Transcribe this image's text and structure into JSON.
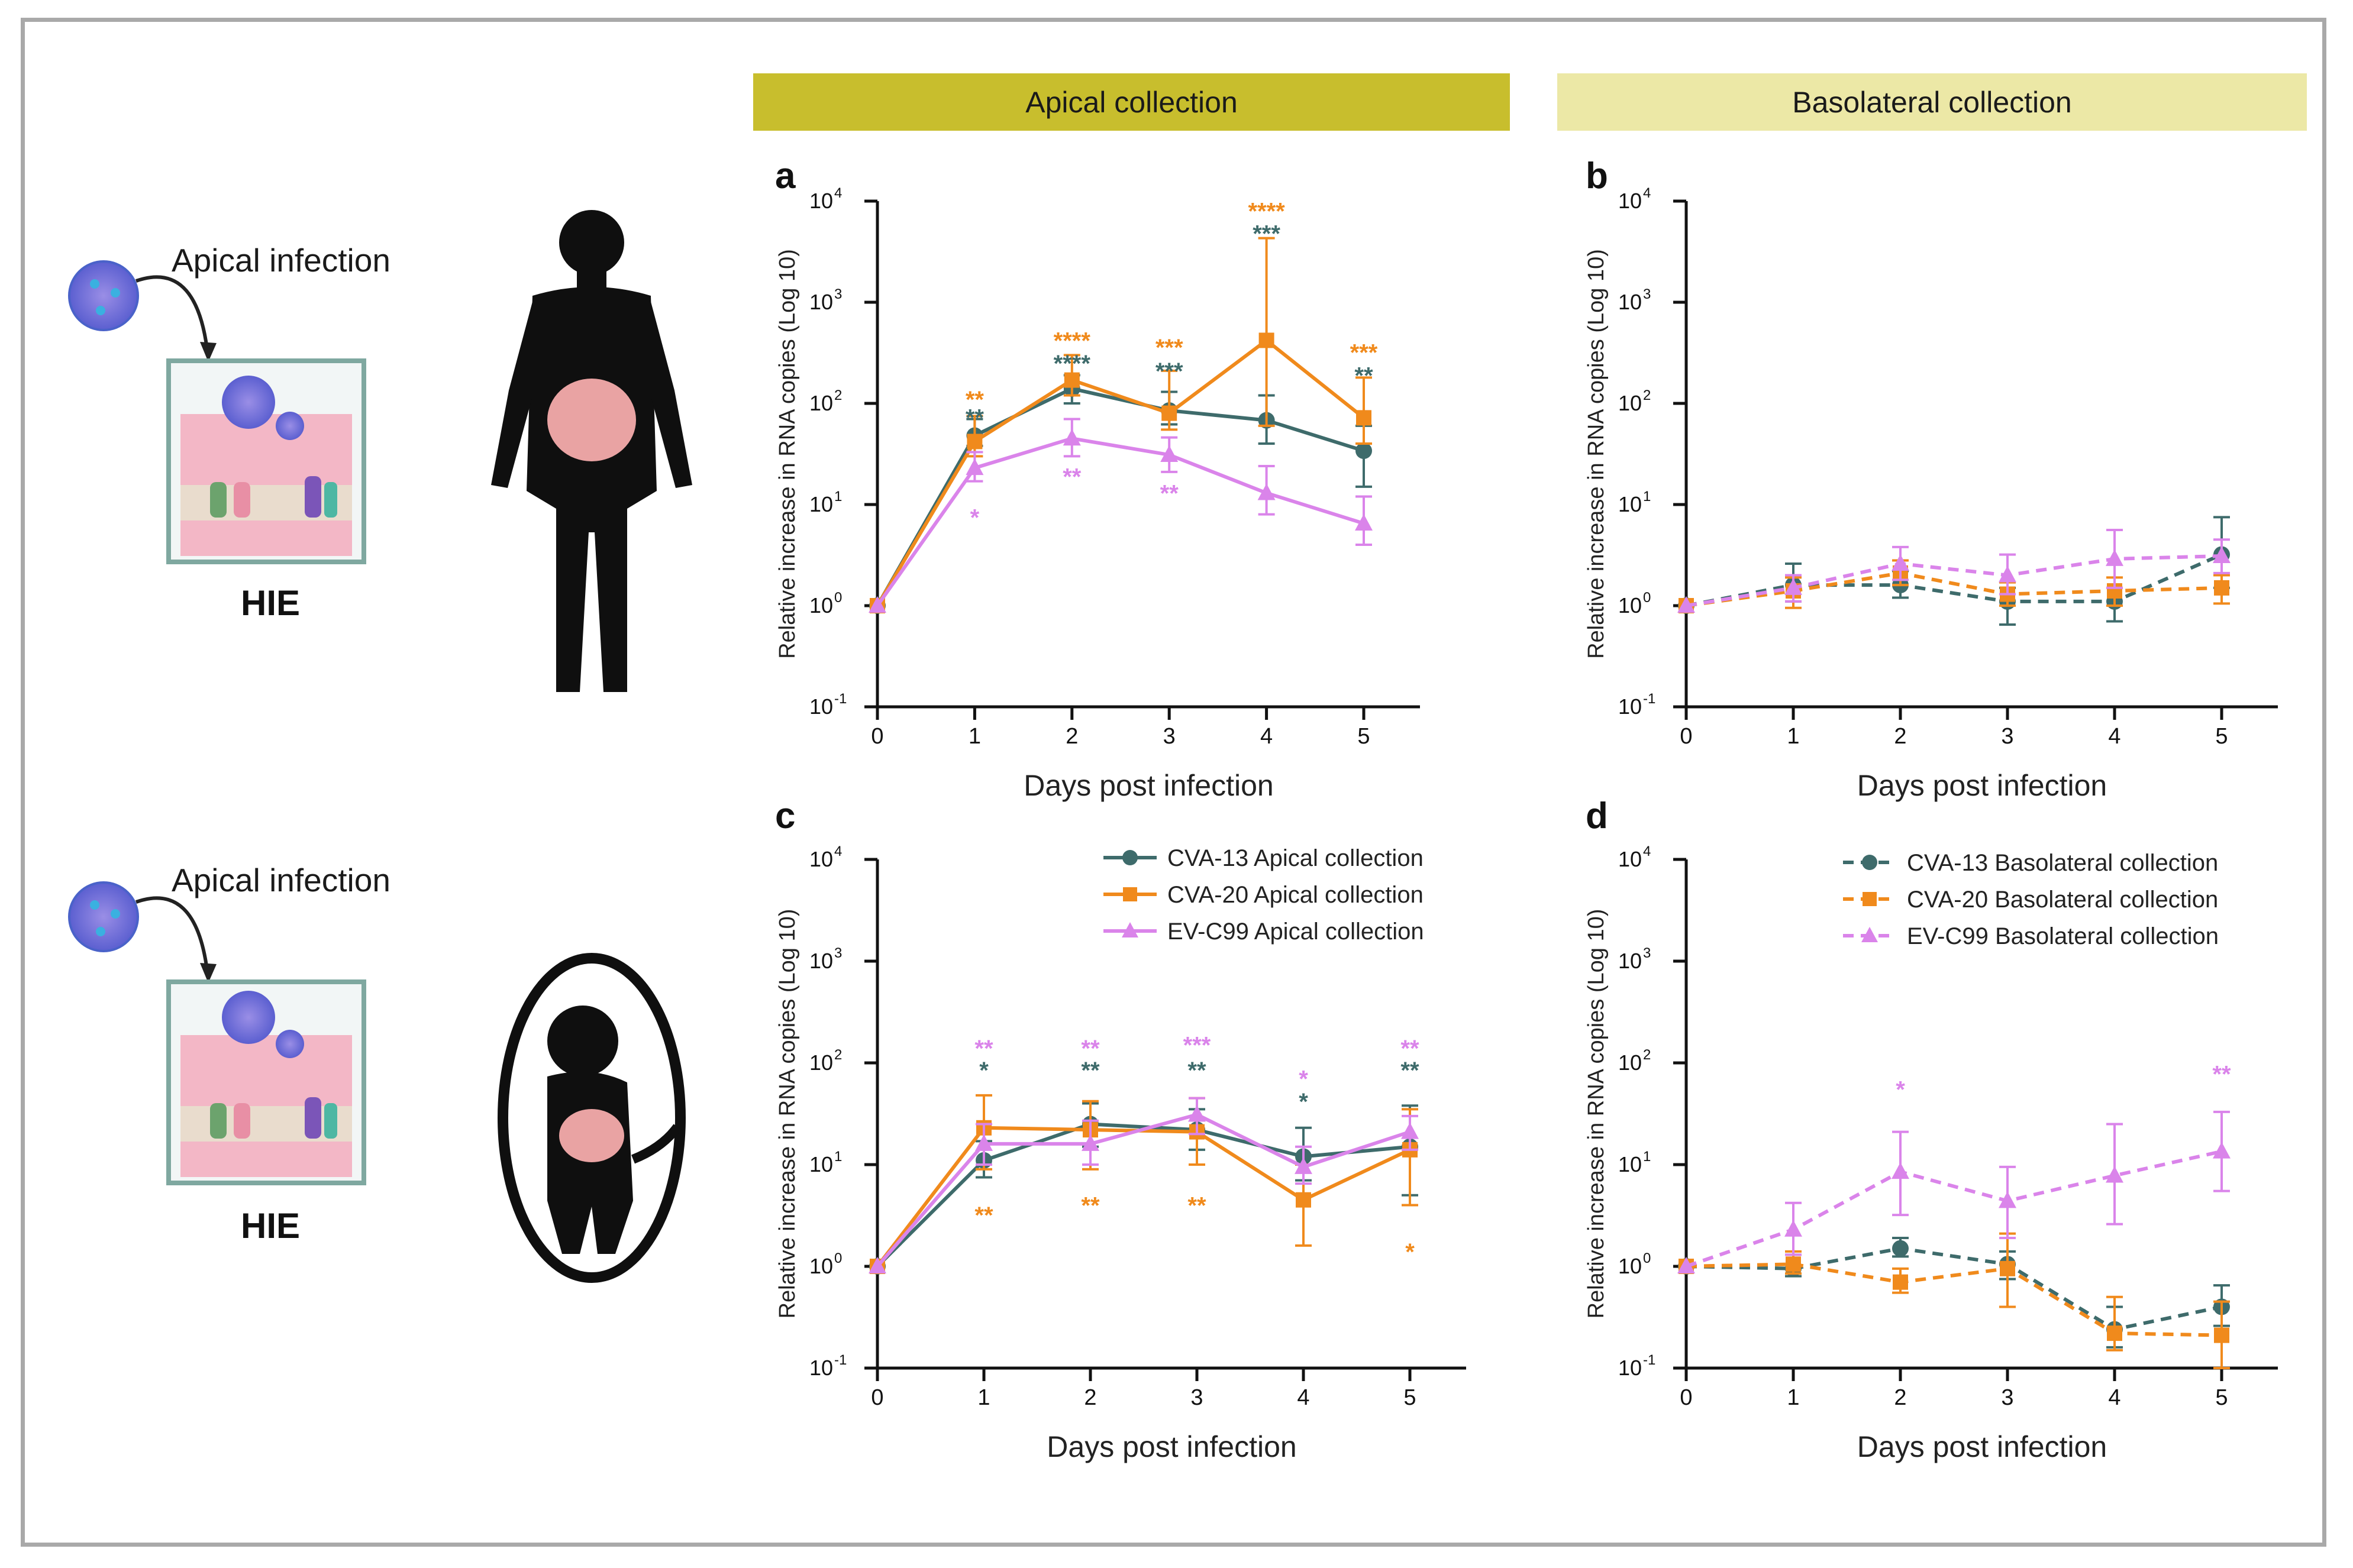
{
  "headers": {
    "apical": "Apical collection",
    "basolateral": "Basolateral collection"
  },
  "illustration": {
    "top_label": "Apical infection",
    "top_hie": "HIE",
    "bottom_label": "Apical infection",
    "bottom_hie": "HIE"
  },
  "colors": {
    "cva13": "#3e6b6b",
    "cva20": "#f08a1c",
    "evc99": "#da84ea",
    "header_apical": "#c8be2d",
    "header_baso": "#ece8a6"
  },
  "chart_data": [
    {
      "panel": "a",
      "type": "line",
      "scale": "log10",
      "xlabel": "Days post infection",
      "ylabel": "Relative increase in RNA copies (Log 10)",
      "x": [
        0,
        1,
        2,
        3,
        4,
        5
      ],
      "xticks": [
        "0",
        "1",
        "2",
        "3",
        "4",
        "5"
      ],
      "yticks": [
        "10",
        "10",
        "10",
        "10",
        "10",
        "10"
      ],
      "ytick_exps": [
        "-1",
        "0",
        "1",
        "2",
        "3",
        "4"
      ],
      "ylim": [
        0.1,
        10000
      ],
      "dashed": false,
      "series": [
        {
          "name": "CVA-13",
          "color": "#3e6b6b",
          "marker": "circle",
          "values": [
            1,
            48,
            140,
            85,
            68,
            34
          ],
          "err_hi": [
            1,
            70,
            190,
            130,
            120,
            60
          ],
          "err_lo": [
            1,
            38,
            100,
            62,
            40,
            15
          ]
        },
        {
          "name": "CVA-20",
          "color": "#f08a1c",
          "marker": "square",
          "values": [
            1,
            42,
            170,
            80,
            420,
            72
          ],
          "err_hi": [
            1,
            75,
            300,
            210,
            4300,
            180
          ],
          "err_lo": [
            1,
            30,
            120,
            55,
            60,
            40
          ]
        },
        {
          "name": "EV-C99",
          "color": "#da84ea",
          "marker": "triangle",
          "values": [
            1,
            23,
            45,
            31,
            13,
            6.5
          ],
          "err_hi": [
            1,
            33,
            70,
            46,
            24,
            12
          ],
          "err_lo": [
            1,
            17,
            30,
            21,
            8,
            4
          ]
        }
      ],
      "annotations": [
        {
          "x": 1,
          "y": 110,
          "text": "**",
          "color": "#f08a1c"
        },
        {
          "x": 1,
          "y": 73,
          "text": "**",
          "color": "#3e6b6b"
        },
        {
          "x": 1,
          "y": 7.5,
          "text": "*",
          "color": "#da84ea"
        },
        {
          "x": 2,
          "y": 420,
          "text": "****",
          "color": "#f08a1c"
        },
        {
          "x": 2,
          "y": 250,
          "text": "****",
          "color": "#3e6b6b"
        },
        {
          "x": 2,
          "y": 19,
          "text": "**",
          "color": "#da84ea"
        },
        {
          "x": 3,
          "y": 360,
          "text": "***",
          "color": "#f08a1c"
        },
        {
          "x": 3,
          "y": 210,
          "text": "***",
          "color": "#3e6b6b"
        },
        {
          "x": 3,
          "y": 13,
          "text": "**",
          "color": "#da84ea"
        },
        {
          "x": 4,
          "y": 8000,
          "text": "****",
          "color": "#f08a1c"
        },
        {
          "x": 4,
          "y": 4800,
          "text": "***",
          "color": "#3e6b6b"
        },
        {
          "x": 5,
          "y": 320,
          "text": "***",
          "color": "#f08a1c"
        },
        {
          "x": 5,
          "y": 190,
          "text": "**",
          "color": "#3e6b6b"
        }
      ]
    },
    {
      "panel": "b",
      "type": "line",
      "scale": "log10",
      "xlabel": "Days post infection",
      "ylabel": "Relative increase in RNA copies (Log 10)",
      "x": [
        0,
        1,
        2,
        3,
        4,
        5
      ],
      "xticks": [
        "0",
        "1",
        "2",
        "3",
        "4",
        "5"
      ],
      "yticks": [
        "10",
        "10",
        "10",
        "10",
        "10",
        "10"
      ],
      "ytick_exps": [
        "-1",
        "0",
        "1",
        "2",
        "3",
        "4"
      ],
      "ylim": [
        0.1,
        10000
      ],
      "dashed": true,
      "series": [
        {
          "name": "CVA-13",
          "color": "#3e6b6b",
          "marker": "circle",
          "values": [
            1,
            1.6,
            1.6,
            1.1,
            1.1,
            3.2
          ],
          "err_hi": [
            1,
            2.6,
            2.2,
            1.5,
            1.5,
            7.5
          ],
          "err_lo": [
            1,
            1.1,
            1.2,
            0.65,
            0.7,
            1.5
          ]
        },
        {
          "name": "CVA-20",
          "color": "#f08a1c",
          "marker": "square",
          "values": [
            1,
            1.4,
            2.1,
            1.3,
            1.4,
            1.5
          ],
          "err_hi": [
            1,
            1.9,
            2.8,
            1.7,
            1.9,
            2.0
          ],
          "err_lo": [
            1,
            0.95,
            1.6,
            1.0,
            1.0,
            1.05
          ]
        },
        {
          "name": "EV-C99",
          "color": "#da84ea",
          "marker": "triangle",
          "values": [
            1,
            1.5,
            2.6,
            2.0,
            2.9,
            3.1
          ],
          "err_hi": [
            1,
            2.0,
            3.8,
            3.2,
            5.6,
            4.5
          ],
          "err_lo": [
            1,
            1.1,
            1.8,
            1.3,
            1.5,
            2.1
          ]
        }
      ],
      "annotations": []
    },
    {
      "panel": "c",
      "type": "line",
      "scale": "log10",
      "xlabel": "Days post infection",
      "ylabel": "Relative increase in RNA copies (Log 10)",
      "x": [
        0,
        1,
        2,
        3,
        4,
        5
      ],
      "xticks": [
        "0",
        "1",
        "2",
        "3",
        "4",
        "5"
      ],
      "yticks": [
        "10",
        "10",
        "10",
        "10",
        "10",
        "10"
      ],
      "ytick_exps": [
        "-1",
        "0",
        "1",
        "2",
        "3",
        "4"
      ],
      "ylim": [
        0.1,
        10000
      ],
      "dashed": false,
      "legend": [
        "CVA-13 Apical collection",
        "CVA-20 Apical collection",
        "EV-C99 Apical collection"
      ],
      "series": [
        {
          "name": "CVA-13 Apical collection",
          "color": "#3e6b6b",
          "marker": "circle",
          "values": [
            1,
            11,
            25,
            22,
            12,
            15
          ],
          "err_hi": [
            1,
            17,
            40,
            35,
            23,
            38
          ],
          "err_lo": [
            1,
            7.5,
            15,
            14,
            7,
            5
          ]
        },
        {
          "name": "CVA-20 Apical collection",
          "color": "#f08a1c",
          "marker": "square",
          "values": [
            1,
            23,
            22,
            21,
            4.5,
            14
          ],
          "err_hi": [
            1,
            48,
            42,
            45,
            10,
            35
          ],
          "err_lo": [
            1,
            9,
            9,
            10,
            1.6,
            4
          ]
        },
        {
          "name": "EV-C99 Apical collection",
          "color": "#da84ea",
          "marker": "triangle",
          "values": [
            1,
            16,
            16,
            31,
            9.5,
            21
          ],
          "err_hi": [
            1,
            25,
            27,
            45,
            15,
            30
          ],
          "err_lo": [
            1,
            10,
            10,
            20,
            6.5,
            14
          ]
        }
      ],
      "annotations": [
        {
          "x": 1,
          "y": 140,
          "text": "**",
          "color": "#da84ea"
        },
        {
          "x": 1,
          "y": 85,
          "text": "*",
          "color": "#3e6b6b"
        },
        {
          "x": 1,
          "y": 3.2,
          "text": "**",
          "color": "#f08a1c"
        },
        {
          "x": 2,
          "y": 140,
          "text": "**",
          "color": "#da84ea"
        },
        {
          "x": 2,
          "y": 85,
          "text": "**",
          "color": "#3e6b6b"
        },
        {
          "x": 2,
          "y": 4,
          "text": "**",
          "color": "#f08a1c"
        },
        {
          "x": 3,
          "y": 150,
          "text": "***",
          "color": "#da84ea"
        },
        {
          "x": 3,
          "y": 85,
          "text": "**",
          "color": "#3e6b6b"
        },
        {
          "x": 3,
          "y": 4,
          "text": "**",
          "color": "#f08a1c"
        },
        {
          "x": 4,
          "y": 70,
          "text": "*",
          "color": "#da84ea"
        },
        {
          "x": 4,
          "y": 42,
          "text": "*",
          "color": "#3e6b6b"
        },
        {
          "x": 5,
          "y": 140,
          "text": "**",
          "color": "#da84ea"
        },
        {
          "x": 5,
          "y": 85,
          "text": "**",
          "color": "#3e6b6b"
        },
        {
          "x": 5,
          "y": 1.4,
          "text": "*",
          "color": "#f08a1c"
        }
      ]
    },
    {
      "panel": "d",
      "type": "line",
      "scale": "log10",
      "xlabel": "Days post infection",
      "ylabel": "Relative increase in RNA copies (Log 10)",
      "x": [
        0,
        1,
        2,
        3,
        4,
        5
      ],
      "xticks": [
        "0",
        "1",
        "2",
        "3",
        "4",
        "5"
      ],
      "yticks": [
        "10",
        "10",
        "10",
        "10",
        "10",
        "10"
      ],
      "ytick_exps": [
        "-1",
        "0",
        "1",
        "2",
        "3",
        "4"
      ],
      "ylim": [
        0.1,
        10000
      ],
      "dashed": true,
      "legend": [
        "CVA-13 Basolateral collection",
        "CVA-20 Basolateral collection",
        "EV-C99 Basolateral collection"
      ],
      "series": [
        {
          "name": "CVA-13 Basolateral collection",
          "color": "#3e6b6b",
          "marker": "circle",
          "values": [
            1,
            0.95,
            1.5,
            1.05,
            0.24,
            0.4
          ],
          "err_hi": [
            1,
            1.3,
            1.9,
            1.4,
            0.4,
            0.65
          ],
          "err_lo": [
            1,
            0.8,
            1.25,
            0.75,
            0.16,
            0.26
          ]
        },
        {
          "name": "CVA-20 Basolateral collection",
          "color": "#f08a1c",
          "marker": "square",
          "values": [
            1,
            1.05,
            0.7,
            0.95,
            0.22,
            0.21
          ],
          "err_hi": [
            1,
            1.4,
            0.95,
            2.1,
            0.5,
            0.45
          ],
          "err_lo": [
            1,
            0.85,
            0.55,
            0.4,
            0.15,
            0.1
          ]
        },
        {
          "name": "EV-C99 Basolateral collection",
          "color": "#da84ea",
          "marker": "triangle",
          "values": [
            1,
            2.3,
            8.5,
            4.4,
            7.8,
            13.5
          ],
          "err_hi": [
            1,
            4.2,
            21,
            9.5,
            25,
            33
          ],
          "err_lo": [
            1,
            1.3,
            3.2,
            1.9,
            2.6,
            5.5
          ]
        }
      ],
      "annotations": [
        {
          "x": 2,
          "y": 55,
          "text": "*",
          "color": "#da84ea"
        },
        {
          "x": 5,
          "y": 78,
          "text": "**",
          "color": "#da84ea"
        }
      ]
    }
  ]
}
